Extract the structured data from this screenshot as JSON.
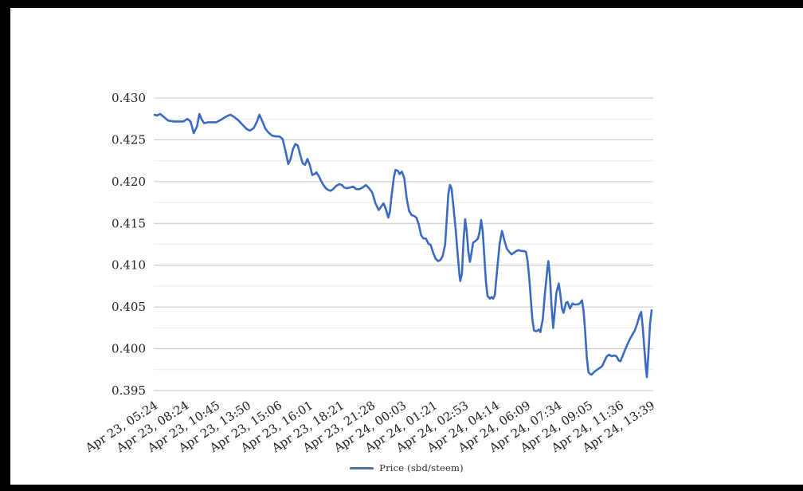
{
  "page": {
    "frame_color": "#000000",
    "canvas_color": "#ffffff"
  },
  "chart_data": {
    "type": "line",
    "title": "",
    "xlabel": "",
    "ylabel": "",
    "legend": {
      "label": "Price (sbd/steem)",
      "position": "bottom",
      "swatch_color": "#54719e"
    },
    "grid": {
      "major_color": "#c6c6c6",
      "minor_color": "#ececec",
      "major_step": 0.005,
      "minor_step": 0.0025
    },
    "axis_text_color": "#232323",
    "y_axis": {
      "min": 0.395,
      "max": 0.43,
      "tick_labels": [
        "0.430",
        "0.425",
        "0.420",
        "0.415",
        "0.410",
        "0.405",
        "0.400",
        "0.395"
      ]
    },
    "x_axis": {
      "tick_labels": [
        "Apr 23, 05:24",
        "Apr 23, 08:24",
        "Apr 23, 10:45",
        "Apr 23, 13:50",
        "Apr 23, 15:06",
        "Apr 23, 16:01",
        "Apr 23, 18:21",
        "Apr 23, 21:28",
        "Apr 24, 00:03",
        "Apr 24, 01:21",
        "Apr 24, 02:53",
        "Apr 24, 04:14",
        "Apr 24, 06:09",
        "Apr 24, 07:34",
        "Apr 24, 09:05",
        "Apr 24, 11:36",
        "Apr 24, 13:39"
      ],
      "label_rotation_deg": -33
    },
    "series": [
      {
        "name": "Price (sbd/steem)",
        "color": "#3a6ac1",
        "points": [
          [
            0,
            0.428
          ],
          [
            3,
            0.4279
          ],
          [
            7,
            0.4281
          ],
          [
            12,
            0.4277
          ],
          [
            17,
            0.4273
          ],
          [
            24,
            0.4272
          ],
          [
            31,
            0.4272
          ],
          [
            36,
            0.4272
          ],
          [
            41,
            0.4275
          ],
          [
            45,
            0.4272
          ],
          [
            49,
            0.4258
          ],
          [
            53,
            0.4266
          ],
          [
            56,
            0.4281
          ],
          [
            59,
            0.4274
          ],
          [
            62,
            0.427
          ],
          [
            67,
            0.4271
          ],
          [
            72,
            0.4271
          ],
          [
            77,
            0.4271
          ],
          [
            83,
            0.4274
          ],
          [
            88,
            0.4277
          ],
          [
            92,
            0.4279
          ],
          [
            95,
            0.428
          ],
          [
            100,
            0.4277
          ],
          [
            105,
            0.4273
          ],
          [
            110,
            0.4268
          ],
          [
            115,
            0.4263
          ],
          [
            119,
            0.4261
          ],
          [
            124,
            0.4264
          ],
          [
            128,
            0.4272
          ],
          [
            131,
            0.428
          ],
          [
            134,
            0.4274
          ],
          [
            138,
            0.4264
          ],
          [
            142,
            0.4259
          ],
          [
            147,
            0.4255
          ],
          [
            152,
            0.4254
          ],
          [
            156,
            0.4254
          ],
          [
            160,
            0.4251
          ],
          [
            164,
            0.4235
          ],
          [
            167,
            0.4221
          ],
          [
            170,
            0.4227
          ],
          [
            173,
            0.4239
          ],
          [
            176,
            0.4245
          ],
          [
            179,
            0.4243
          ],
          [
            182,
            0.4232
          ],
          [
            185,
            0.4222
          ],
          [
            188,
            0.422
          ],
          [
            191,
            0.4227
          ],
          [
            194,
            0.422
          ],
          [
            197,
            0.4208
          ],
          [
            200,
            0.4209
          ],
          [
            202,
            0.4211
          ],
          [
            205,
            0.4207
          ],
          [
            208,
            0.4201
          ],
          [
            211,
            0.4196
          ],
          [
            214,
            0.4192
          ],
          [
            217,
            0.419
          ],
          [
            220,
            0.4189
          ],
          [
            223,
            0.4191
          ],
          [
            227,
            0.4195
          ],
          [
            231,
            0.4197
          ],
          [
            234,
            0.4196
          ],
          [
            237,
            0.4193
          ],
          [
            240,
            0.4192
          ],
          [
            244,
            0.4193
          ],
          [
            248,
            0.4194
          ],
          [
            252,
            0.4191
          ],
          [
            256,
            0.4191
          ],
          [
            260,
            0.4193
          ],
          [
            264,
            0.4196
          ],
          [
            268,
            0.4192
          ],
          [
            272,
            0.4187
          ],
          [
            276,
            0.4174
          ],
          [
            280,
            0.4166
          ],
          [
            283,
            0.417
          ],
          [
            286,
            0.4174
          ],
          [
            289,
            0.4167
          ],
          [
            292,
            0.4157
          ],
          [
            294,
            0.4164
          ],
          [
            296,
            0.4182
          ],
          [
            299,
            0.4205
          ],
          [
            301,
            0.4214
          ],
          [
            304,
            0.4213
          ],
          [
            306,
            0.4209
          ],
          [
            309,
            0.4212
          ],
          [
            312,
            0.4204
          ],
          [
            315,
            0.418
          ],
          [
            318,
            0.4165
          ],
          [
            321,
            0.416
          ],
          [
            324,
            0.4159
          ],
          [
            327,
            0.4157
          ],
          [
            330,
            0.4149
          ],
          [
            333,
            0.4136
          ],
          [
            336,
            0.4132
          ],
          [
            339,
            0.4132
          ],
          [
            342,
            0.4126
          ],
          [
            345,
            0.4124
          ],
          [
            348,
            0.4115
          ],
          [
            351,
            0.4108
          ],
          [
            354,
            0.4105
          ],
          [
            357,
            0.4106
          ],
          [
            360,
            0.4111
          ],
          [
            363,
            0.4125
          ],
          [
            365,
            0.4155
          ],
          [
            367,
            0.4185
          ],
          [
            369,
            0.4196
          ],
          [
            371,
            0.4192
          ],
          [
            373,
            0.4174
          ],
          [
            376,
            0.4145
          ],
          [
            379,
            0.411
          ],
          [
            381,
            0.4088
          ],
          [
            382,
            0.4081
          ],
          [
            384,
            0.409
          ],
          [
            386,
            0.413
          ],
          [
            388,
            0.4155
          ],
          [
            390,
            0.414
          ],
          [
            392,
            0.4117
          ],
          [
            394,
            0.4104
          ],
          [
            396,
            0.4115
          ],
          [
            398,
            0.4127
          ],
          [
            401,
            0.4129
          ],
          [
            404,
            0.4132
          ],
          [
            406,
            0.414
          ],
          [
            408,
            0.4154
          ],
          [
            410,
            0.414
          ],
          [
            412,
            0.411
          ],
          [
            414,
            0.408
          ],
          [
            416,
            0.4063
          ],
          [
            419,
            0.406
          ],
          [
            421,
            0.4062
          ],
          [
            423,
            0.406
          ],
          [
            425,
            0.4064
          ],
          [
            428,
            0.4095
          ],
          [
            431,
            0.4125
          ],
          [
            434,
            0.4141
          ],
          [
            437,
            0.413
          ],
          [
            440,
            0.412
          ],
          [
            443,
            0.4116
          ],
          [
            446,
            0.4113
          ],
          [
            449,
            0.4115
          ],
          [
            452,
            0.4117
          ],
          [
            455,
            0.4118
          ],
          [
            458,
            0.4117
          ],
          [
            461,
            0.4117
          ],
          [
            464,
            0.4116
          ],
          [
            466,
            0.4105
          ],
          [
            468,
            0.4085
          ],
          [
            470,
            0.406
          ],
          [
            472,
            0.4035
          ],
          [
            474,
            0.4022
          ],
          [
            477,
            0.4021
          ],
          [
            480,
            0.4023
          ],
          [
            482,
            0.402
          ],
          [
            485,
            0.4035
          ],
          [
            488,
            0.407
          ],
          [
            491,
            0.4098
          ],
          [
            492,
            0.4105
          ],
          [
            494,
            0.4085
          ],
          [
            496,
            0.405
          ],
          [
            498,
            0.4025
          ],
          [
            500,
            0.4045
          ],
          [
            502,
            0.4067
          ],
          [
            505,
            0.4078
          ],
          [
            507,
            0.4065
          ],
          [
            509,
            0.4048
          ],
          [
            511,
            0.4043
          ],
          [
            514,
            0.4055
          ],
          [
            516,
            0.4056
          ],
          [
            519,
            0.4048
          ],
          [
            522,
            0.4054
          ],
          [
            525,
            0.4053
          ],
          [
            528,
            0.4053
          ],
          [
            531,
            0.4054
          ],
          [
            534,
            0.4058
          ],
          [
            536,
            0.4045
          ],
          [
            538,
            0.402
          ],
          [
            540,
            0.399
          ],
          [
            542,
            0.3972
          ],
          [
            544,
            0.397
          ],
          [
            546,
            0.3969
          ],
          [
            548,
            0.3971
          ],
          [
            550,
            0.3973
          ],
          [
            553,
            0.3975
          ],
          [
            556,
            0.3977
          ],
          [
            559,
            0.3979
          ],
          [
            562,
            0.3985
          ],
          [
            565,
            0.3991
          ],
          [
            568,
            0.3993
          ],
          [
            571,
            0.3991
          ],
          [
            574,
            0.3992
          ],
          [
            577,
            0.3991
          ],
          [
            580,
            0.3986
          ],
          [
            582,
            0.3985
          ],
          [
            585,
            0.3992
          ],
          [
            588,
            0.3999
          ],
          [
            591,
            0.4006
          ],
          [
            594,
            0.4012
          ],
          [
            597,
            0.4017
          ],
          [
            600,
            0.4022
          ],
          [
            603,
            0.403
          ],
          [
            606,
            0.404
          ],
          [
            608,
            0.4044
          ],
          [
            610,
            0.4025
          ],
          [
            612,
            0.3998
          ],
          [
            614,
            0.3975
          ],
          [
            615,
            0.3966
          ],
          [
            617,
            0.3995
          ],
          [
            619,
            0.403
          ],
          [
            621,
            0.4046
          ]
        ]
      }
    ]
  }
}
